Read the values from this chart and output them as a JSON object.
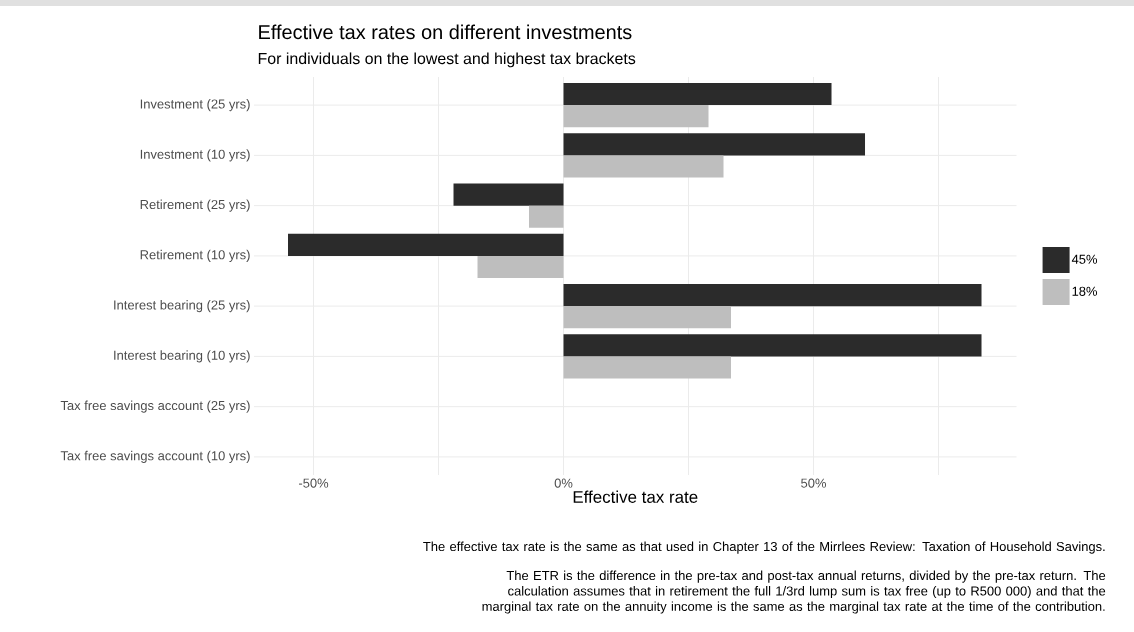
{
  "chart_data": {
    "type": "bar",
    "orientation": "horizontal",
    "title": "Effective tax rates on different investments",
    "subtitle": "For individuals on the lowest and highest tax brackets",
    "xlabel": "Effective tax rate",
    "categories": [
      "Investment (25 yrs)",
      "Investment (10 yrs)",
      "Retirement (25 yrs)",
      "Retirement (10 yrs)",
      "Interest bearing (25 yrs)",
      "Interest bearing (10 yrs)",
      "Tax free savings account (25 yrs)",
      "Tax free savings account (10 yrs)"
    ],
    "series": [
      {
        "name": "45%",
        "color": "#2b2b2b",
        "values": [
          53.6,
          60.3,
          -22,
          -55.1,
          83.6,
          83.6,
          0,
          0
        ]
      },
      {
        "name": "18%",
        "color": "#bebebe",
        "values": [
          29,
          32,
          -6.9,
          -17.2,
          33.5,
          33.5,
          0,
          0
        ]
      }
    ],
    "xlim": [
      -61.9,
      90.6
    ],
    "xticks": [
      {
        "value": -50,
        "label": "-50%"
      },
      {
        "value": -25,
        "label": null
      },
      {
        "value": 0,
        "label": "0%"
      },
      {
        "value": 25,
        "label": null
      },
      {
        "value": 50,
        "label": "50%"
      },
      {
        "value": 75,
        "label": null
      }
    ],
    "grid": true,
    "legend": "right",
    "annotations": [
      "The effective tax rate is the same as that used in Chapter 13 of the Mirrlees Review: Taxation of Household Savings.",
      "The ETR is the difference in the pre-tax and post-tax annual returns, divided by the pre-tax return. The calculation assumes that in retirement the full 1/3rd lump sum is tax free (up to R500 000) and that the marginal tax rate on the annuity income is the same as the marginal tax rate at the time of the contribution."
    ]
  }
}
